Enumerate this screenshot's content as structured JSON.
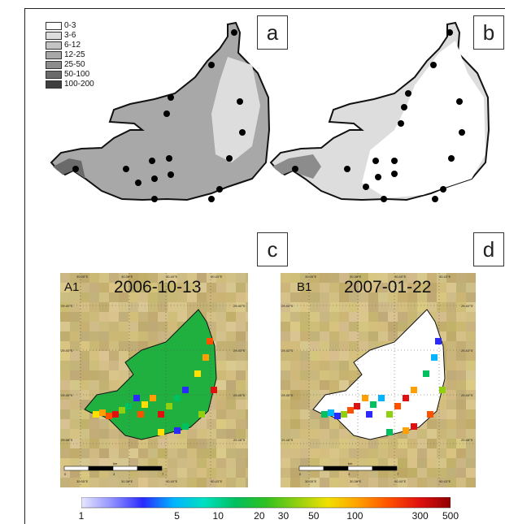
{
  "panels": {
    "a": {
      "label": "a"
    },
    "b": {
      "label": "b"
    },
    "c": {
      "label": "c",
      "image_id": "A1",
      "date": "2006-10-13"
    },
    "d": {
      "label": "d",
      "image_id": "B1",
      "date": "2007-01-22"
    }
  },
  "legend": {
    "classes": [
      {
        "label": "0-3",
        "color": "#ffffff"
      },
      {
        "label": "3-6",
        "color": "#dddddd"
      },
      {
        "label": "6-12",
        "color": "#c4c4c4"
      },
      {
        "label": "12-25",
        "color": "#a8a8a8"
      },
      {
        "label": "25-50",
        "color": "#8c8c8c"
      },
      {
        "label": "50-100",
        "color": "#6a6a6a"
      },
      {
        "label": "100-200",
        "color": "#3e3e3e"
      }
    ]
  },
  "map_ticks": {
    "lon": [
      "30.35°E",
      "30.38°E",
      "30.40°E",
      "30.43°E"
    ],
    "lat": [
      "29.40°S",
      "29.43°S",
      "29.45°S",
      "29.48°S"
    ],
    "scale_unit": "km",
    "scale": [
      "0",
      "3",
      "7"
    ]
  },
  "colorbar": {
    "ticks": [
      "1",
      "5",
      "10",
      "20",
      "30",
      "50",
      "100",
      "300",
      "500"
    ],
    "colors": [
      "#e8e8ff",
      "#9090ff",
      "#2a2aff",
      "#00b4ff",
      "#00e0c0",
      "#00c060",
      "#30c020",
      "#90d010",
      "#f0e000",
      "#ffa000",
      "#ff5000",
      "#e01010",
      "#900000"
    ]
  }
}
